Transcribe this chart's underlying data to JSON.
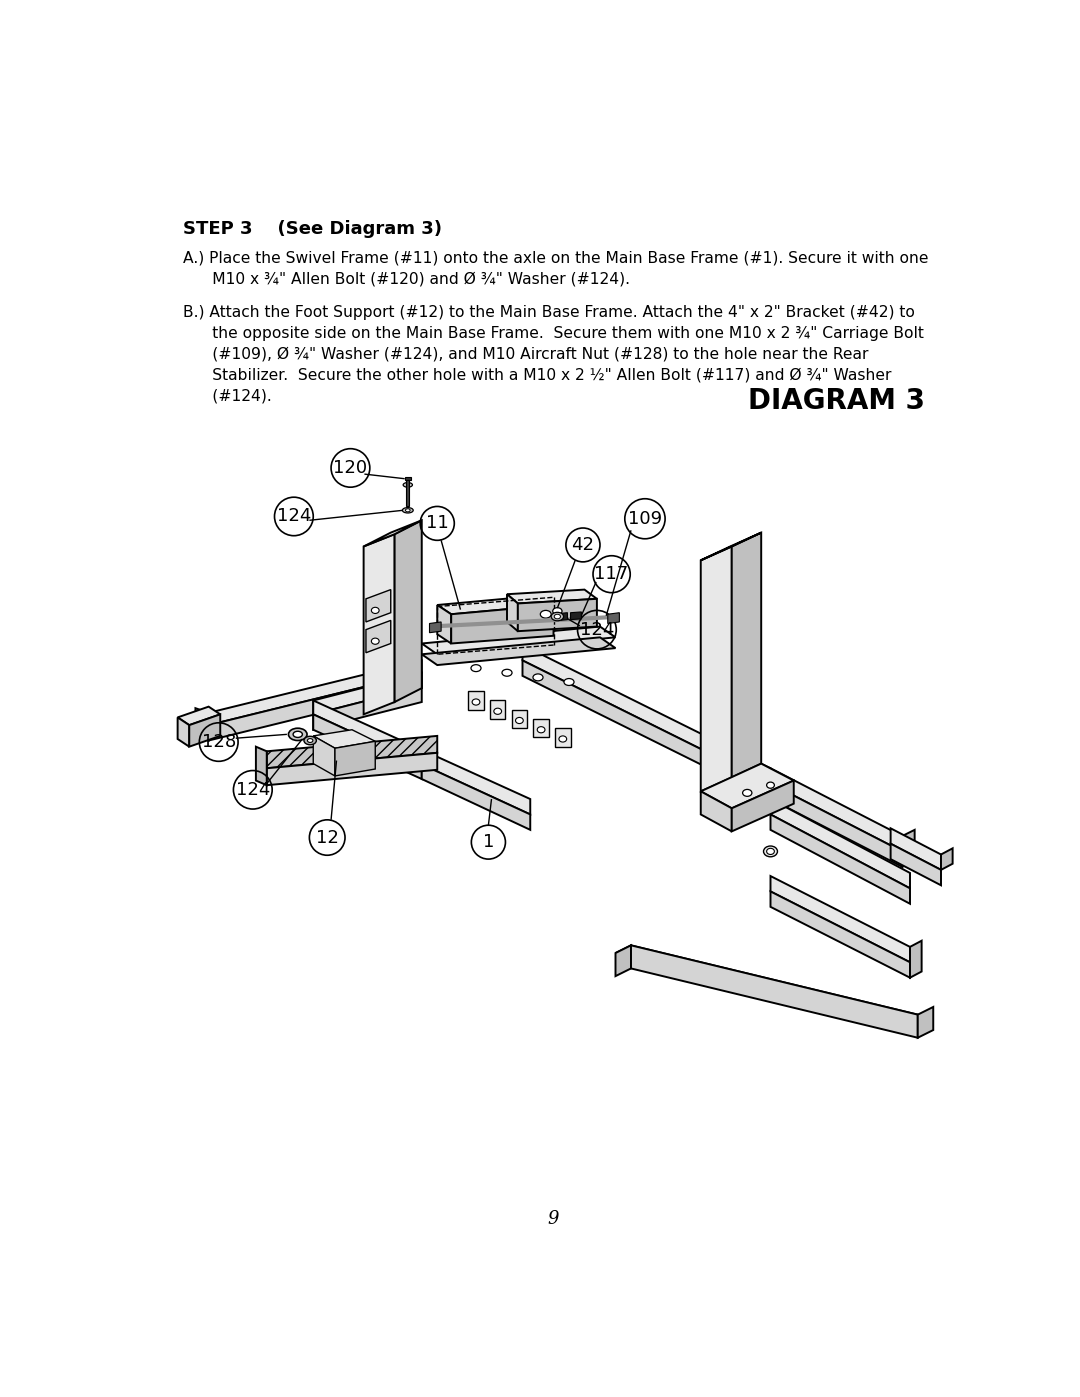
{
  "bg_color": "#ffffff",
  "page_number": "9",
  "step_header": "STEP 3    (See Diagram 3)",
  "diagram_title": "DIAGRAM 3",
  "instr_A": "A.) Place the Swivel Frame (#11) onto the axle on the Main Base Frame (#1). Secure it with one\n      M10 x ¾\" Allen Bolt (#120) and Ø ¾\" Washer (#124).",
  "instr_B": "B.) Attach the Foot Support (#12) to the Main Base Frame. Attach the 4\" x 2\" Bracket (#42) to\n      the opposite side on the Main Base Frame.  Secure them with one M10 x 2 ¾\" Carriage Bolt\n      (#109), Ø ¾\" Washer (#124), and M10 Aircraft Nut (#128) to the hole near the Rear\n      Stabilizer.  Secure the other hole with a M10 x 2 ½\" Allen Bolt (#117) and Ø ¾\" Washer\n      (#124).",
  "lc": "#000000",
  "fc_light": "#e8e8e8",
  "fc_mid": "#d0d0d0",
  "fc_dark": "#b8b8b8",
  "fc_darker": "#a0a0a0"
}
